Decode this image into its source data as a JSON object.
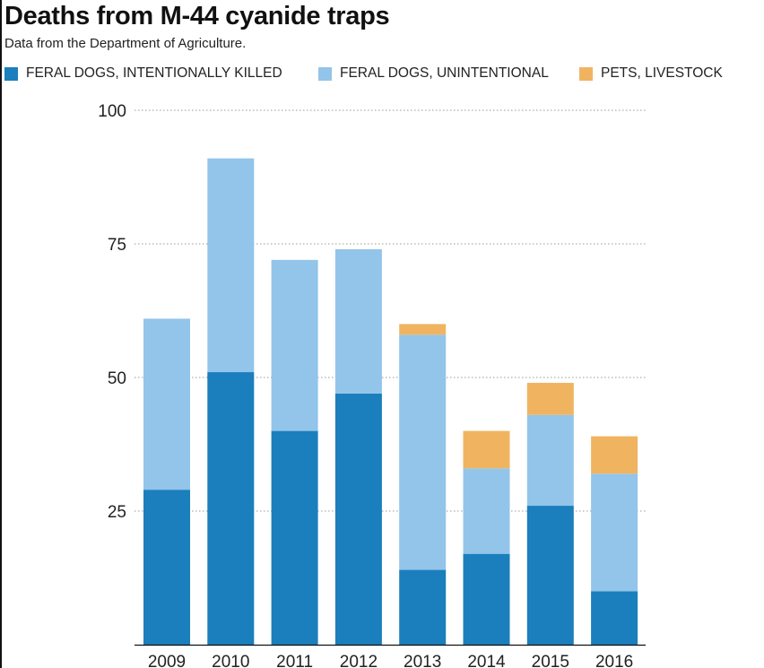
{
  "chart_data": {
    "type": "bar",
    "stacked": true,
    "title": "Deaths from M-44 cyanide traps",
    "subtitle": "Data from the Department of Agriculture.",
    "categories": [
      "2009",
      "2010",
      "2011",
      "2012",
      "2013",
      "2014",
      "2015",
      "2016"
    ],
    "series": [
      {
        "name": "FERAL DOGS, INTENTIONALLY KILLED",
        "color": "#1a7fbc",
        "values": [
          29,
          51,
          40,
          47,
          14,
          17,
          26,
          10
        ]
      },
      {
        "name": "FERAL DOGS, UNINTENTIONAL",
        "color": "#93c4ea",
        "values": [
          32,
          40,
          32,
          27,
          44,
          16,
          17,
          22
        ]
      },
      {
        "name": "PETS, LIVESTOCK",
        "color": "#f0b461",
        "values": [
          0,
          0,
          0,
          0,
          2,
          7,
          6,
          7
        ]
      }
    ],
    "ylim": [
      0,
      100
    ],
    "yticks": [
      25,
      50,
      75,
      100
    ],
    "ytick_labels": [
      "25",
      "50",
      "75",
      "100"
    ],
    "grid": "horizontal-dotted",
    "legend_position": "top"
  }
}
